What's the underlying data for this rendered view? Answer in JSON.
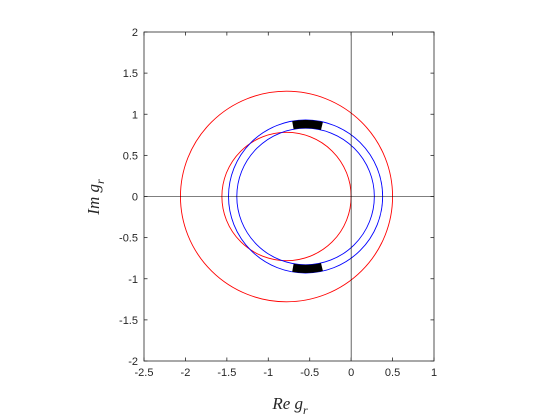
{
  "chart_data": {
    "type": "line",
    "xlabel": "Re g",
    "xlabel_sub": "r",
    "ylabel": "Im g",
    "ylabel_sub": "r",
    "xlim": [
      -2.5,
      1
    ],
    "ylim": [
      -2,
      2
    ],
    "xticks": [
      -2.5,
      -2,
      -1.5,
      -1,
      -0.5,
      0,
      0.5,
      1
    ],
    "xtick_labels": [
      "-2.5",
      "-2",
      "-1.5",
      "-1",
      "-0.5",
      "0",
      "0.5",
      "1"
    ],
    "yticks": [
      -2,
      -1.5,
      -1,
      -0.5,
      0,
      0.5,
      1,
      1.5,
      2
    ],
    "ytick_labels": [
      "-2",
      "-1.5",
      "-1",
      "-0.5",
      "0",
      "0.5",
      "1",
      "1.5",
      "2"
    ],
    "grid": false,
    "reference_lines": {
      "x": 0,
      "y": 0,
      "color": "#000000"
    },
    "circles": [
      {
        "color": "#ff0000",
        "center": [
          -0.78,
          0
        ],
        "radius": 1.28
      },
      {
        "color": "#ff0000",
        "center": [
          -0.78,
          0
        ],
        "radius": 0.78
      },
      {
        "color": "#0000ff",
        "center": [
          -0.55,
          0
        ],
        "radius": 0.93
      },
      {
        "color": "#0000ff",
        "center": [
          -0.55,
          0
        ],
        "radius": 0.83
      }
    ],
    "filled_regions": [
      {
        "color": "#000000",
        "inner": "blue-1",
        "outer": "blue-0",
        "angle_from_deg": 100,
        "angle_to_deg": 77
      },
      {
        "color": "#000000",
        "inner": "blue-1",
        "outer": "blue-0",
        "angle_from_deg": -100,
        "angle_to_deg": -77
      }
    ]
  }
}
